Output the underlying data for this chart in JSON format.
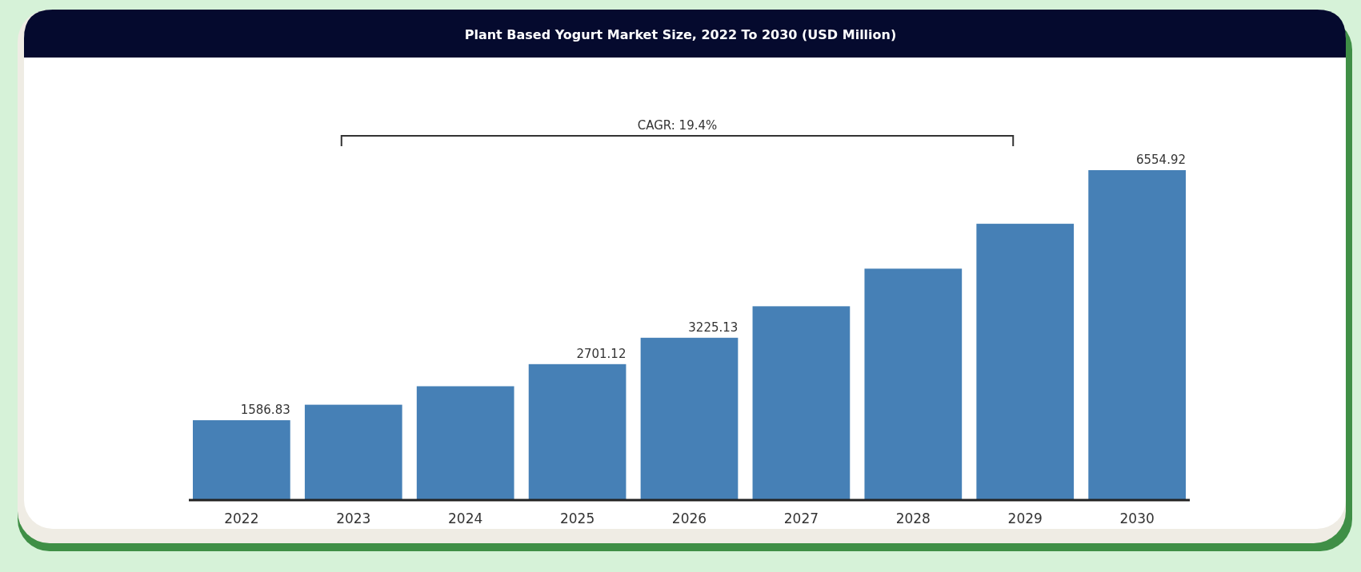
{
  "chart_data": {
    "type": "bar",
    "title": "Plant Based Yogurt Market Size, 2022 To 2030 (USD Million)",
    "categories": [
      "2022",
      "2023",
      "2024",
      "2025",
      "2026",
      "2027",
      "2028",
      "2029",
      "2030"
    ],
    "values": [
      1586.83,
      1895,
      2262,
      2701.12,
      3225.13,
      3851,
      4598,
      5490,
      6554.92
    ],
    "value_labels": [
      "1586.83",
      null,
      null,
      "2701.12",
      "3225.13",
      null,
      null,
      null,
      "6554.92"
    ],
    "color": "#4680b6",
    "annotations": [
      "CAGR: 19.4%"
    ]
  }
}
